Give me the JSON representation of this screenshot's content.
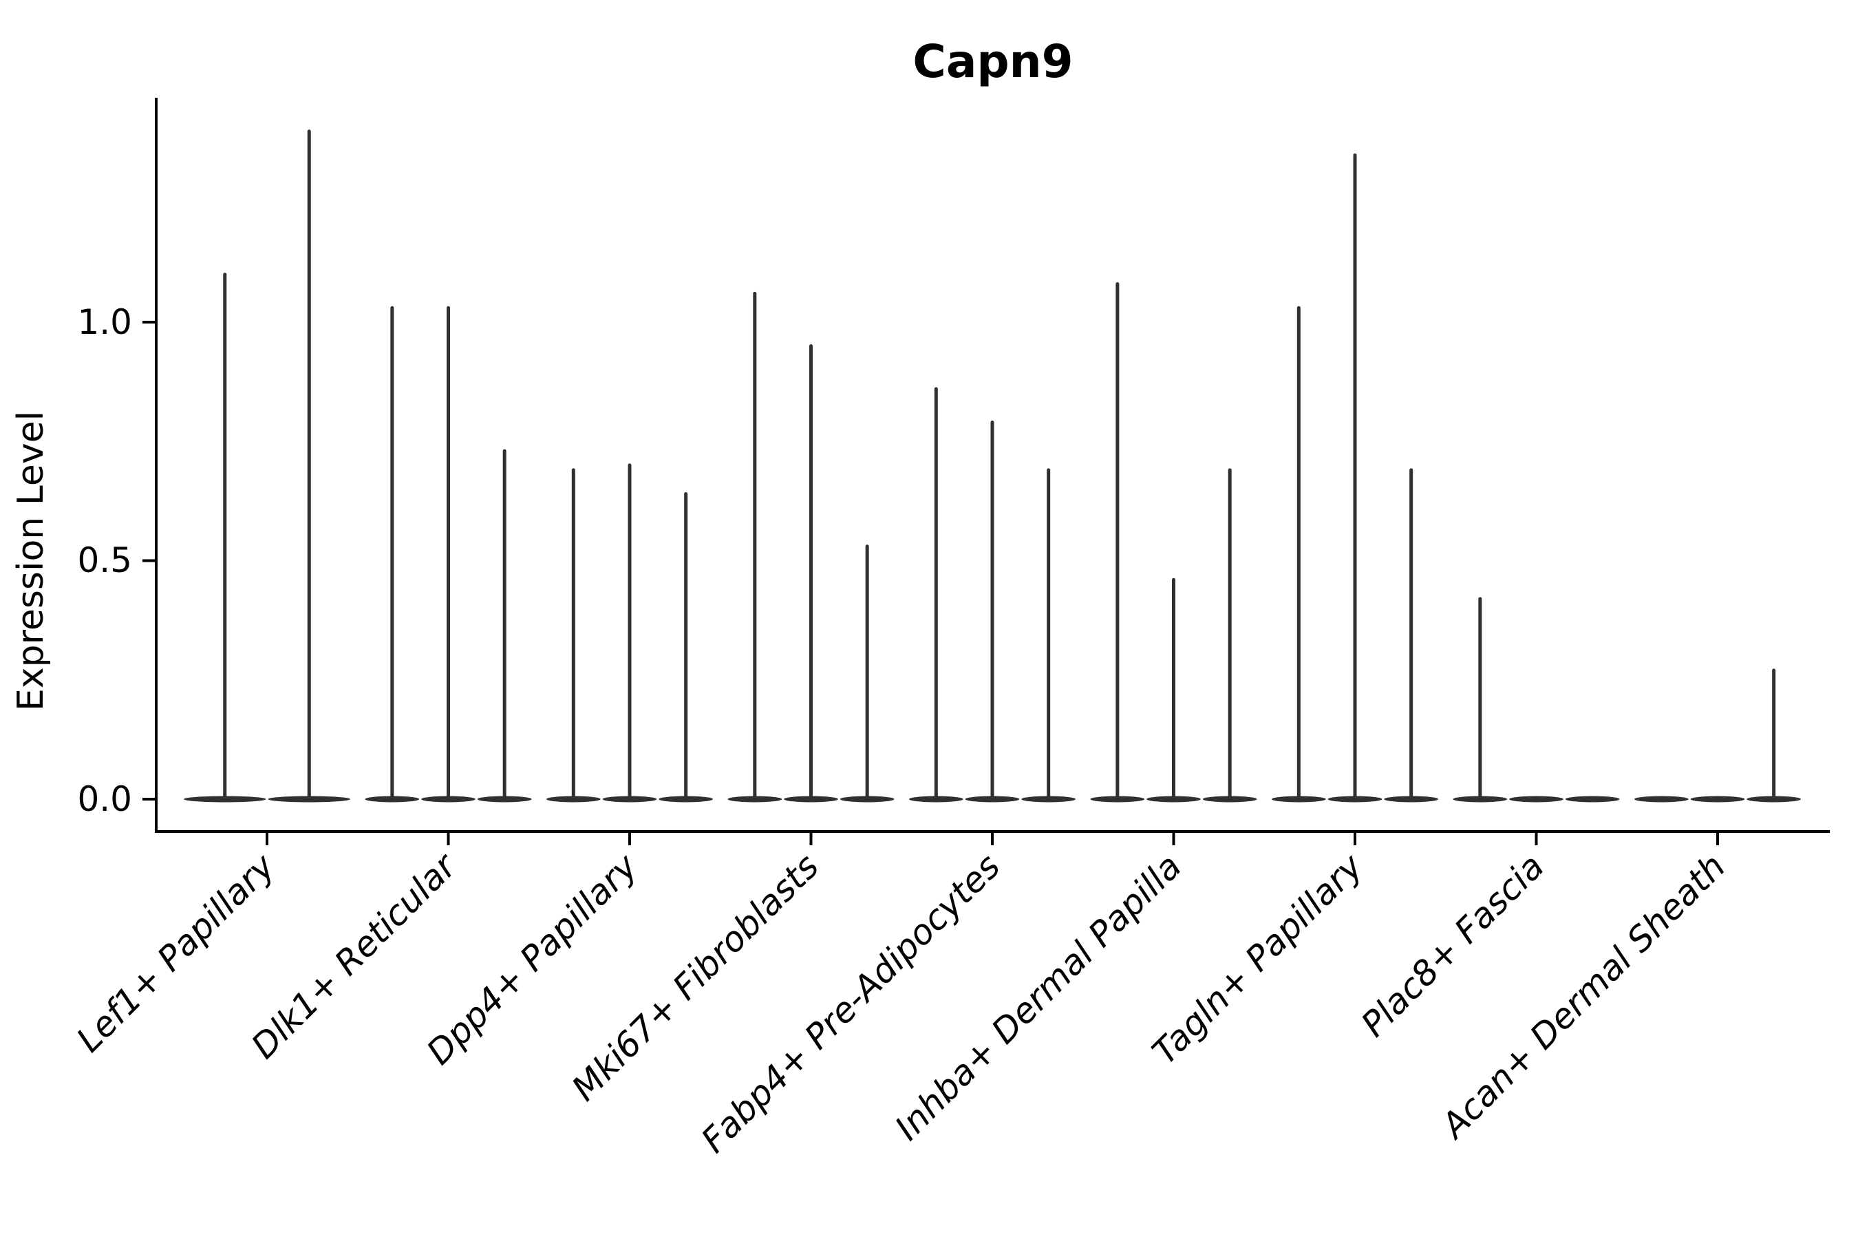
{
  "figure": {
    "title": "Capn9",
    "background_color": "#ffffff",
    "axis_color": "#000000",
    "violin_color": "#303030"
  },
  "y_axis": {
    "label": "Expression Level",
    "ticks": [
      "0.0",
      "0.5",
      "1.0"
    ],
    "tick_values": [
      0.0,
      0.5,
      1.0
    ]
  },
  "x_axis": {
    "categories": [
      "Lef1+ Papillary",
      "Dlk1+ Reticular",
      "Dpp4+ Papillary",
      "Mki67+ Fibroblasts",
      "Fabp4+ Pre-Adipocytes",
      "Inhba+ Dermal Papilla",
      "Tagln+ Papillary",
      "Plac8+ Fascia",
      "Acan+ Dermal Sheath"
    ]
  },
  "chart_data": {
    "type": "violin",
    "title": "Capn9",
    "xlabel": "",
    "ylabel": "Expression Level",
    "ylim": [
      -0.07,
      1.47
    ],
    "yticks": [
      0.0,
      0.5,
      1.0
    ],
    "grid": false,
    "legend_position": "none",
    "description": "Violin plot of Capn9 expression; most cells at 0 so violins collapse to a flat base with thin spikes reaching each violin's maximum expression value. Groups of up to 3 thin violins share each category slot.",
    "categories": [
      "Lef1+ Papillary",
      "Dlk1+ Reticular",
      "Dpp4+ Papillary",
      "Mki67+ Fibroblasts",
      "Fabp4+ Pre-Adipocytes",
      "Inhba+ Dermal Papilla",
      "Tagln+ Papillary",
      "Plac8+ Fascia",
      "Acan+ Dermal Sheath"
    ],
    "groups": [
      {
        "category": "Lef1+ Papillary",
        "violin_maxima": [
          1.1,
          1.4
        ]
      },
      {
        "category": "Dlk1+ Reticular",
        "violin_maxima": [
          1.03,
          1.03,
          0.73
        ]
      },
      {
        "category": "Dpp4+ Papillary",
        "violin_maxima": [
          0.69,
          0.7,
          0.64
        ]
      },
      {
        "category": "Mki67+ Fibroblasts",
        "violin_maxima": [
          1.06,
          0.95,
          0.53
        ]
      },
      {
        "category": "Fabp4+ Pre-Adipocytes",
        "violin_maxima": [
          0.86,
          0.79,
          0.69
        ]
      },
      {
        "category": "Inhba+ Dermal Papilla",
        "violin_maxima": [
          1.08,
          0.46,
          0.69
        ]
      },
      {
        "category": "Tagln+ Papillary",
        "violin_maxima": [
          1.03,
          1.35,
          0.69
        ]
      },
      {
        "category": "Plac8+ Fascia",
        "violin_maxima": [
          0.42,
          0.0,
          0.0
        ]
      },
      {
        "category": "Acan+ Dermal Sheath",
        "violin_maxima": [
          0.0,
          0.0,
          0.27
        ]
      }
    ],
    "baseline_value": 0.0
  }
}
